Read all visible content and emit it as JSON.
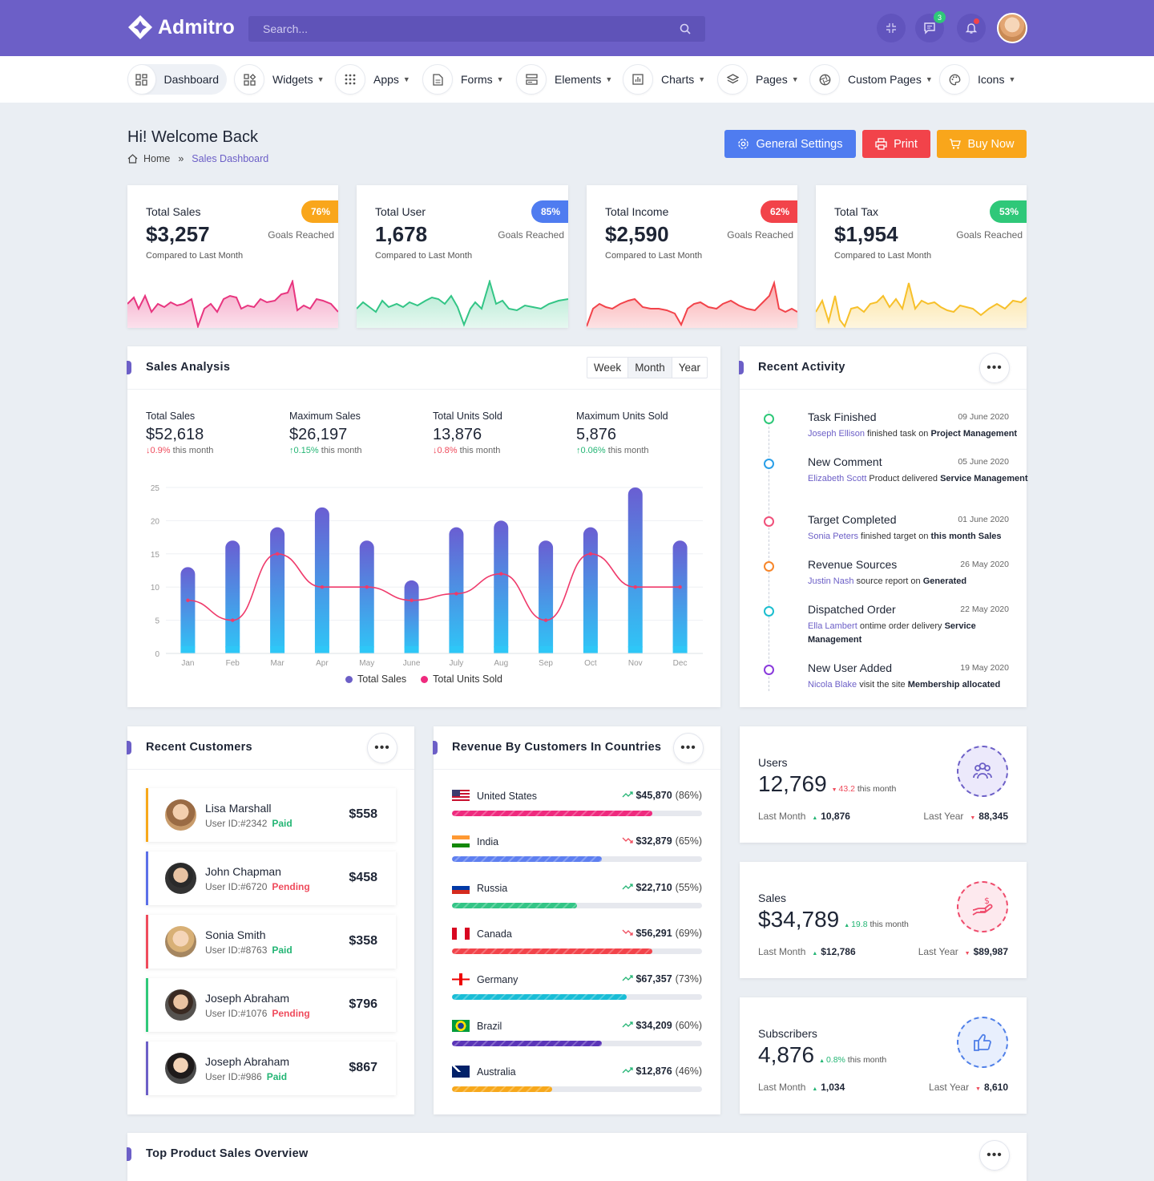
{
  "brand": {
    "name": "Admitro"
  },
  "search": {
    "placeholder": "Search..."
  },
  "topbar": {
    "message_count": "3"
  },
  "nav": [
    {
      "label": "Dashboard",
      "icon": "dashboard-icon"
    },
    {
      "label": "Widgets",
      "icon": "widgets-icon"
    },
    {
      "label": "Apps",
      "icon": "apps-grid-icon"
    },
    {
      "label": "Forms",
      "icon": "forms-icon"
    },
    {
      "label": "Elements",
      "icon": "elements-icon"
    },
    {
      "label": "Charts",
      "icon": "charts-icon"
    },
    {
      "label": "Pages",
      "icon": "layers-icon"
    },
    {
      "label": "Custom Pages",
      "icon": "aperture-icon"
    },
    {
      "label": "Icons",
      "icon": "palette-icon"
    }
  ],
  "header": {
    "welcome": "Hi! Welcome Back",
    "crumb_home": "Home",
    "crumb_sep": "»",
    "crumb_current": "Sales Dashboard"
  },
  "buttons": {
    "settings": "General Settings",
    "print": "Print",
    "buy": "Buy Now"
  },
  "stats": [
    {
      "label": "Total Sales",
      "value": "$3,257",
      "compare": "Compared to Last Month",
      "pct": "76%",
      "goal": "Goals Reached",
      "color": "#e8357f"
    },
    {
      "label": "Total User",
      "value": "1,678",
      "compare": "Compared to Last Month",
      "pct": "85%",
      "goal": "Goals Reached",
      "color": "#33c586"
    },
    {
      "label": "Total Income",
      "value": "$2,590",
      "compare": "Compared to Last Month",
      "pct": "62%",
      "goal": "Goals Reached",
      "color": "#f2434a"
    },
    {
      "label": "Total Tax",
      "value": "$1,954",
      "compare": "Compared to Last Month",
      "pct": "53%",
      "goal": "Goals Reached",
      "color": "#f7c02a"
    }
  ],
  "sales_analysis": {
    "title": "Sales Analysis",
    "periods": [
      "Week",
      "Month",
      "Year"
    ],
    "kpis": [
      {
        "label": "Total Sales",
        "value": "$52,618",
        "arrow": "↓",
        "change": "0.9%",
        "suffix": " this month",
        "dir": "down"
      },
      {
        "label": "Maximum Sales",
        "value": "$26,197",
        "arrow": "↑",
        "change": "0.15%",
        "suffix": " this month",
        "dir": "up"
      },
      {
        "label": "Total Units Sold",
        "value": "13,876",
        "arrow": "↓",
        "change": "0.8%",
        "suffix": " this month",
        "dir": "down"
      },
      {
        "label": "Maximum Units Sold",
        "value": "5,876",
        "arrow": "↑",
        "change": "0.06%",
        "suffix": " this month",
        "dir": "up"
      }
    ]
  },
  "chart_data": {
    "type": "bar",
    "categories": [
      "Jan",
      "Feb",
      "Mar",
      "Apr",
      "May",
      "June",
      "July",
      "Aug",
      "Sep",
      "Oct",
      "Nov",
      "Dec"
    ],
    "series": [
      {
        "name": "Total Sales",
        "type": "bar",
        "values": [
          13,
          17,
          19,
          22,
          17,
          11,
          19,
          20,
          17,
          19,
          25,
          17
        ]
      },
      {
        "name": "Total Units Sold",
        "type": "line",
        "values": [
          8,
          5,
          15,
          10,
          10,
          8,
          9,
          12,
          5,
          15,
          10,
          10
        ]
      }
    ],
    "ylim": [
      0,
      25
    ],
    "yticks": [
      0,
      5,
      10,
      15,
      20,
      25
    ],
    "grid": true,
    "legend": "bottom"
  },
  "activity": {
    "title": "Recent Activity",
    "items": [
      {
        "title": "Task Finished",
        "date": "09 June 2020",
        "name": "Joseph Ellison",
        "text": " finished task on ",
        "bold": "Project Management",
        "color": "#2fc879"
      },
      {
        "title": "New Comment",
        "date": "05 June 2020",
        "name": "Elizabeth Scott",
        "text": " Product delivered ",
        "bold": "Service Management",
        "color": "#2a9fe8"
      },
      {
        "title": "Target Completed",
        "date": "01 June 2020",
        "name": "Sonia Peters",
        "text": " finished target on ",
        "bold": "this month Sales",
        "color": "#f0507a"
      },
      {
        "title": "Revenue Sources",
        "date": "26 May 2020",
        "name": "Justin Nash",
        "text": " source report on ",
        "bold": "Generated",
        "color": "#f7862a"
      },
      {
        "title": "Dispatched Order",
        "date": "22 May 2020",
        "name": "Ella Lambert",
        "text": " ontime order delivery ",
        "bold": "Service Management",
        "color": "#1bbecf"
      },
      {
        "title": "New User Added",
        "date": "19 May 2020",
        "name": "Nicola Blake",
        "text": " visit the site ",
        "bold": "Membership allocated",
        "color": "#8a3bdc"
      }
    ]
  },
  "customers": {
    "title": "Recent Customers",
    "items": [
      {
        "name": "Lisa Marshall",
        "uid": "User ID:#2342",
        "status": "Paid",
        "amount": "$558",
        "color": "#f7a81b"
      },
      {
        "name": "John Chapman",
        "uid": "User ID:#6720",
        "status": "Pending",
        "amount": "$458",
        "color": "#5b6fe8"
      },
      {
        "name": "Sonia Smith",
        "uid": "User ID:#8763",
        "status": "Paid",
        "amount": "$358",
        "color": "#ef4b5c"
      },
      {
        "name": "Joseph Abraham",
        "uid": "User ID:#1076",
        "status": "Pending",
        "amount": "$796",
        "color": "#2fc879"
      },
      {
        "name": "Joseph Abraham",
        "uid": "User ID:#986",
        "status": "Paid",
        "amount": "$867",
        "color": "#6c5fc7"
      }
    ]
  },
  "countries": {
    "title": "Revenue By Customers In Countries",
    "items": [
      {
        "name": "United States",
        "value": "$45,870",
        "pct": "(86%)",
        "trend": "up",
        "fill": 0.8,
        "color": "#ef2a7e"
      },
      {
        "name": "India",
        "value": "$32,879",
        "pct": "(65%)",
        "trend": "down",
        "fill": 0.6,
        "color": "#5e7ff0"
      },
      {
        "name": "Russia",
        "value": "$22,710",
        "pct": "(55%)",
        "trend": "up",
        "fill": 0.5,
        "color": "#33c586"
      },
      {
        "name": "Canada",
        "value": "$56,291",
        "pct": "(69%)",
        "trend": "down",
        "fill": 0.8,
        "color": "#f2434a"
      },
      {
        "name": "Germany",
        "value": "$67,357",
        "pct": "(73%)",
        "trend": "up",
        "fill": 0.7,
        "color": "#19bdd6"
      },
      {
        "name": "Brazil",
        "value": "$34,209",
        "pct": "(60%)",
        "trend": "up",
        "fill": 0.6,
        "color": "#5b35b8"
      },
      {
        "name": "Australia",
        "value": "$12,876",
        "pct": "(46%)",
        "trend": "up",
        "fill": 0.4,
        "color": "#f7a81b"
      }
    ]
  },
  "mini": [
    {
      "label": "Users",
      "value": "12,769",
      "change": "43.2",
      "change_suffix": " this month",
      "dir": "down",
      "last_month_label": "Last Month",
      "last_month": "10,876",
      "last_year_label": "Last Year",
      "last_year": "88,345",
      "color": "#6c5fc7",
      "bg": "#ece9fb"
    },
    {
      "label": "Sales",
      "value": "$34,789",
      "change": "19.8",
      "change_suffix": " this month",
      "dir": "up",
      "last_month_label": "Last Month",
      "last_month": "$12,786",
      "last_year_label": "Last Year",
      "last_year": "$89,987",
      "color": "#ef4b6c",
      "bg": "#fde9ee"
    },
    {
      "label": "Subscribers",
      "value": "4,876",
      "change": "0.8%",
      "change_suffix": " this month",
      "dir": "up",
      "last_month_label": "Last Month",
      "last_month": "1,034",
      "last_year_label": "Last Year",
      "last_year": "8,610",
      "color": "#4f7fe8",
      "bg": "#e8effd"
    }
  ],
  "top_products": {
    "title": "Top Product Sales Overview"
  }
}
